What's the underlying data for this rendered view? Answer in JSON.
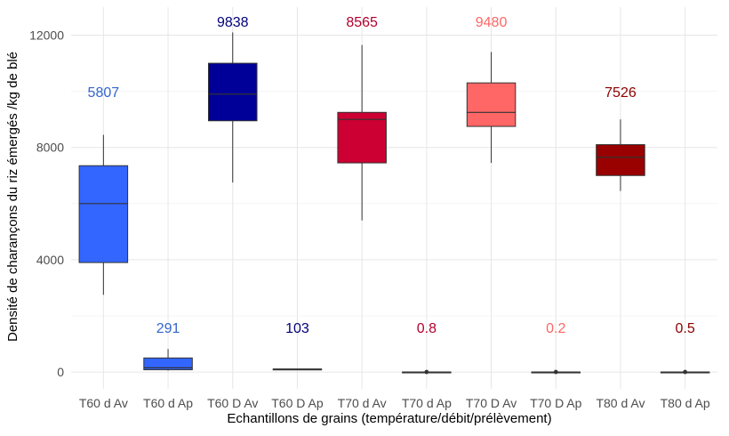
{
  "chart_data": {
    "type": "boxplot",
    "title": "",
    "xlabel": "Echantillons de grains (température/débit/prélèvement)",
    "ylabel": "Densité de charançons du riz émergés /kg de blé",
    "ylim": [
      -600,
      13000
    ],
    "yticks": [
      0,
      4000,
      8000,
      12000
    ],
    "ytick_labels": [
      "0",
      "4000",
      "8000",
      "12000"
    ],
    "categories": [
      "T60 d Av",
      "T60 d Ap",
      "T60 D Av",
      "T60 D Ap",
      "T70 d Av",
      "T70 d Ap",
      "T70 D Av",
      "T70 D Ap",
      "T80 d Av",
      "T80 d Ap"
    ],
    "boxes": [
      {
        "category": "T60 d Av",
        "color": "#3366ff",
        "min": 2750,
        "q1": 3900,
        "median": 6000,
        "q3": 7350,
        "max": 8450,
        "mean_label": "5807",
        "label_color": "#3366cc",
        "label_y": 9800
      },
      {
        "category": "T60 d Ap",
        "color": "#3366ff",
        "min": 50,
        "q1": 80,
        "median": 150,
        "q3": 500,
        "max": 820,
        "mean_label": "291",
        "label_color": "#3366cc",
        "label_y": 1400
      },
      {
        "category": "T60 D Av",
        "color": "#000099",
        "min": 6750,
        "q1": 8950,
        "median": 9900,
        "q3": 11000,
        "max": 12100,
        "mean_label": "9838",
        "label_color": "#00007a",
        "label_y": 12300
      },
      {
        "category": "T60 D Ap",
        "color": "#000099",
        "min": 100,
        "q1": 100,
        "median": 103,
        "q3": 106,
        "max": 106,
        "mean_label": "103",
        "label_color": "#00007a",
        "label_y": 1400
      },
      {
        "category": "T70 d Av",
        "color": "#cc0033",
        "min": 5400,
        "q1": 7450,
        "median": 9000,
        "q3": 9250,
        "max": 11650,
        "mean_label": "8565",
        "label_color": "#b3002d",
        "label_y": 12300
      },
      {
        "category": "T70 d Ap",
        "color": "#cc0033",
        "min": 0,
        "q1": 0,
        "median": 0.8,
        "q3": 1,
        "max": 1,
        "mean_label": "0.8",
        "label_color": "#b3002d",
        "label_y": 1400,
        "point": 0
      },
      {
        "category": "T70 D Av",
        "color": "#ff6666",
        "min": 7450,
        "q1": 8750,
        "median": 9250,
        "q3": 10300,
        "max": 11400,
        "mean_label": "9480",
        "label_color": "#ff6666",
        "label_y": 12300
      },
      {
        "category": "T70 D Ap",
        "color": "#ff6666",
        "min": 0,
        "q1": 0,
        "median": 0.2,
        "q3": 0.3,
        "max": 0.3,
        "mean_label": "0.2",
        "label_color": "#ff6666",
        "label_y": 1400,
        "point": 0
      },
      {
        "category": "T80 d Av",
        "color": "#990000",
        "min": 6450,
        "q1": 7000,
        "median": 7650,
        "q3": 8100,
        "max": 9000,
        "mean_label": "7526",
        "label_color": "#8b0000",
        "label_y": 9800
      },
      {
        "category": "T80 d Ap",
        "color": "#990000",
        "min": 0,
        "q1": 0,
        "median": 0.5,
        "q3": 0.6,
        "max": 0.6,
        "mean_label": "0.5",
        "label_color": "#8b0000",
        "label_y": 1400,
        "point": 0
      }
    ]
  }
}
